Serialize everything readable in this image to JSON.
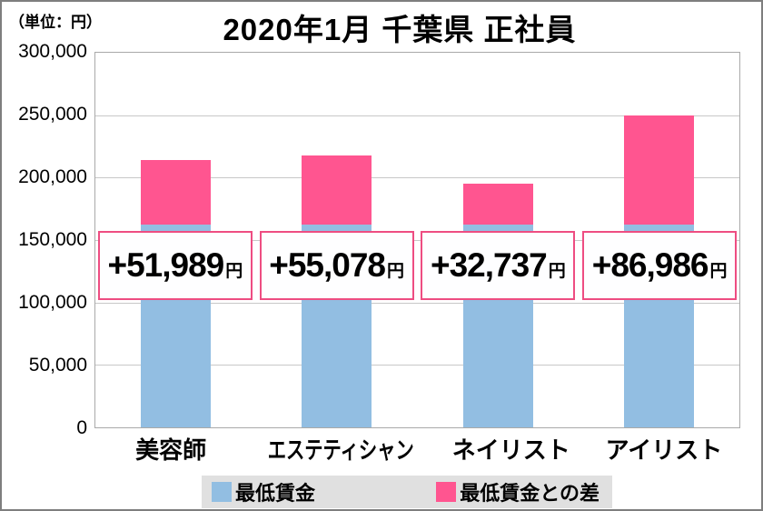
{
  "header": {
    "unit_label": "（単位：円）",
    "title": "2020年1月 千葉県 正社員"
  },
  "chart_data": {
    "type": "bar",
    "stacked": true,
    "title": "2020年1月 千葉県 正社員",
    "unit": "円",
    "categories": [
      "美容師",
      "エステティシャン",
      "ネイリスト",
      "アイリスト"
    ],
    "series": [
      {
        "name": "最低賃金",
        "color": "#92bee2",
        "values": [
          162448,
          162448,
          162448,
          162448
        ]
      },
      {
        "name": "最低賃金との差",
        "color": "#ff5590",
        "values": [
          51989,
          55078,
          32737,
          86986
        ]
      }
    ],
    "totals": [
      214437,
      217526,
      195185,
      249434
    ],
    "bar_labels": [
      {
        "amount": "+51,989",
        "suffix": "円"
      },
      {
        "amount": "+55,078",
        "suffix": "円"
      },
      {
        "amount": "+32,737",
        "suffix": "円"
      },
      {
        "amount": "+86,986",
        "suffix": "円"
      }
    ],
    "y_axis": {
      "min": 0,
      "max": 300000,
      "tick_values": [
        300000,
        250000,
        200000,
        150000,
        100000,
        50000,
        0
      ],
      "tick_labels": [
        "300,000",
        "250,000",
        "200,000",
        "150,000",
        "100,000",
        "50,000",
        "0"
      ]
    },
    "grid": true,
    "legend_position": "bottom"
  },
  "legend": {
    "items": [
      {
        "label": "最低賃金",
        "color": "#92bee2"
      },
      {
        "label": "最低賃金との差",
        "color": "#ff5590"
      }
    ],
    "background": "#e0e0e0"
  },
  "styles": {
    "bar_blue": "#92bee2",
    "bar_pink": "#ff5590",
    "label_box_border": "#ee4d82",
    "label_box_background": "#fefeff",
    "gridline_color": "#c8c8c8",
    "axis_color": "#a9a9a9"
  }
}
